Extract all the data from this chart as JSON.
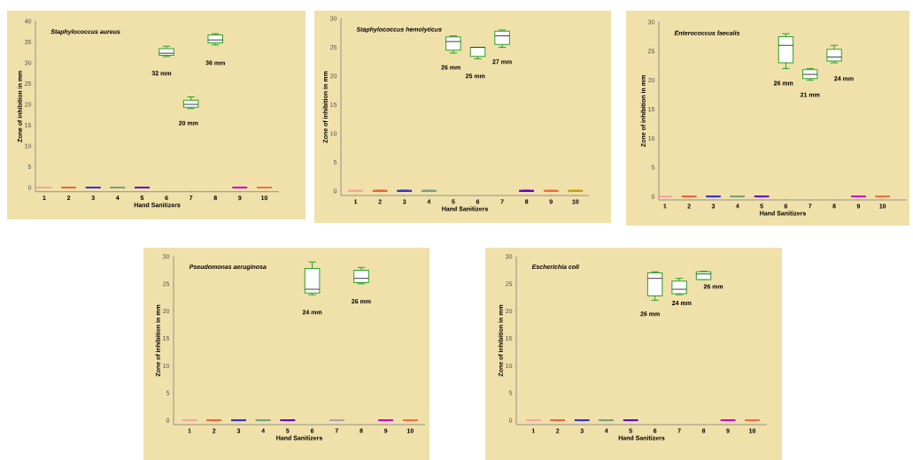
{
  "chart_data": [
    {
      "type": "box",
      "title": "Staphylococcus aureus",
      "xlabel": "Hand Sanitizers",
      "ylabel": "Zone of inhibition in mm",
      "categories": [
        "1",
        "2",
        "3",
        "4",
        "5",
        "6",
        "7",
        "8",
        "9",
        "10"
      ],
      "boxes": [
        {
          "low": 0,
          "q1": 0,
          "median": 0,
          "q3": 0,
          "high": 0
        },
        {
          "low": 0,
          "q1": 0,
          "median": 0,
          "q3": 0,
          "high": 0
        },
        {
          "low": 0,
          "q1": 0,
          "median": 0,
          "q3": 0,
          "high": 0
        },
        {
          "low": 0,
          "q1": 0,
          "median": 0,
          "q3": 0,
          "high": 0
        },
        {
          "low": 0,
          "q1": 0,
          "median": 0,
          "q3": 0,
          "high": 0
        },
        {
          "low": 31.5,
          "q1": 31.8,
          "median": 32.3,
          "q3": 33.4,
          "high": 34
        },
        {
          "low": 19,
          "q1": 19.3,
          "median": 20,
          "q3": 21,
          "high": 21.8
        },
        {
          "low": 34.3,
          "q1": 34.8,
          "median": 35.5,
          "q3": 36.7,
          "high": 37
        },
        {
          "low": 0,
          "q1": 0,
          "median": 0,
          "q3": 0,
          "high": 0
        },
        {
          "low": 0,
          "q1": 0,
          "median": 0,
          "q3": 0,
          "high": 0
        }
      ],
      "colors": [
        "#f4a6a0",
        "#e8643c",
        "#3333cc",
        "#7aa07a",
        "#6600cc",
        "#2ca02c",
        "#2ca02c",
        "#2ca02c",
        "#cc00cc",
        "#f07040"
      ],
      "ylim": [
        -1,
        40
      ],
      "yticks": [
        0,
        5,
        10,
        15,
        20,
        25,
        30,
        35,
        40
      ],
      "annotations": [
        "32 mm",
        "20 mm",
        "36 mm"
      ]
    },
    {
      "type": "box",
      "title": "Staphylococcus hemolyticus",
      "xlabel": "Hand Sanitizers",
      "ylabel": "Zone of inhibition in mm",
      "categories": [
        "1",
        "2",
        "3",
        "4",
        "5",
        "6",
        "7",
        "8",
        "9",
        "10"
      ],
      "boxes": [
        {
          "low": 0,
          "q1": 0,
          "median": 0,
          "q3": 0,
          "high": 0
        },
        {
          "low": 0,
          "q1": 0,
          "median": 0,
          "q3": 0,
          "high": 0
        },
        {
          "low": 0,
          "q1": 0,
          "median": 0,
          "q3": 0,
          "high": 0
        },
        {
          "low": 0,
          "q1": 0,
          "median": 0,
          "q3": 0,
          "high": 0
        },
        {
          "low": 24,
          "q1": 24.5,
          "median": 26,
          "q3": 26.8,
          "high": 27
        },
        {
          "low": 23,
          "q1": 23.4,
          "median": 25,
          "q3": 25,
          "high": 25
        },
        {
          "low": 25,
          "q1": 25.5,
          "median": 27,
          "q3": 27.8,
          "high": 28
        },
        {
          "low": 0,
          "q1": 0,
          "median": 0,
          "q3": 0,
          "high": 0
        },
        {
          "low": 0,
          "q1": 0,
          "median": 0,
          "q3": 0,
          "high": 0
        },
        {
          "low": 0,
          "q1": 0,
          "median": 0,
          "q3": 0,
          "high": 0
        }
      ],
      "colors": [
        "#f4a6a0",
        "#e8643c",
        "#3333cc",
        "#7aa07a",
        "#2ca02c",
        "#2ca02c",
        "#2ca02c",
        "#6600cc",
        "#f07040",
        "#c8a000"
      ],
      "ylim": [
        -0.8,
        30
      ],
      "yticks": [
        0,
        5,
        10,
        15,
        20,
        25,
        30
      ],
      "annotations": [
        "26 mm",
        "25 mm",
        "27 mm"
      ]
    },
    {
      "type": "box",
      "title": "Enterococcus faecalis",
      "xlabel": "Hand Sanitizers",
      "ylabel": "Zone of inhibition in mm",
      "categories": [
        "1",
        "2",
        "3",
        "4",
        "5",
        "6",
        "7",
        "8",
        "9",
        "10"
      ],
      "boxes": [
        {
          "low": 0,
          "q1": 0,
          "median": 0,
          "q3": 0,
          "high": 0
        },
        {
          "low": 0,
          "q1": 0,
          "median": 0,
          "q3": 0,
          "high": 0
        },
        {
          "low": 0,
          "q1": 0,
          "median": 0,
          "q3": 0,
          "high": 0
        },
        {
          "low": 0,
          "q1": 0,
          "median": 0,
          "q3": 0,
          "high": 0
        },
        {
          "low": 0,
          "q1": 0,
          "median": 0,
          "q3": 0,
          "high": 0
        },
        {
          "low": 22,
          "q1": 23,
          "median": 26,
          "q3": 27.5,
          "high": 28
        },
        {
          "low": 20,
          "q1": 20.3,
          "median": 21,
          "q3": 21.8,
          "high": 22
        },
        {
          "low": 23,
          "q1": 23.3,
          "median": 24,
          "q3": 25.3,
          "high": 26
        },
        {
          "low": 0,
          "q1": 0,
          "median": 0,
          "q3": 0,
          "high": 0
        },
        {
          "low": 0,
          "q1": 0,
          "median": 0,
          "q3": 0,
          "high": 0
        }
      ],
      "colors": [
        "#f4a6a0",
        "#e8643c",
        "#3333cc",
        "#7aa07a",
        "#6600cc",
        "#2ca02c",
        "#2ca02c",
        "#2ca02c",
        "#cc00cc",
        "#f07040"
      ],
      "ylim": [
        -0.6,
        30
      ],
      "yticks": [
        0,
        5,
        10,
        15,
        20,
        25,
        30
      ],
      "annotations": [
        "26 mm",
        "21 mm",
        "24 mm"
      ]
    },
    {
      "type": "box",
      "title": "Pseudomonas aeruginosa",
      "xlabel": "Hand Sanitizers",
      "ylabel": "Zone of inhibition in mm",
      "categories": [
        "1",
        "2",
        "3",
        "4",
        "5",
        "6",
        "7",
        "8",
        "9",
        "10"
      ],
      "boxes": [
        {
          "low": 0,
          "q1": 0,
          "median": 0,
          "q3": 0,
          "high": 0
        },
        {
          "low": 0,
          "q1": 0,
          "median": 0,
          "q3": 0,
          "high": 0
        },
        {
          "low": 0,
          "q1": 0,
          "median": 0,
          "q3": 0,
          "high": 0
        },
        {
          "low": 0,
          "q1": 0,
          "median": 0,
          "q3": 0,
          "high": 0
        },
        {
          "low": 0,
          "q1": 0,
          "median": 0,
          "q3": 0,
          "high": 0
        },
        {
          "low": 23,
          "q1": 23.3,
          "median": 24,
          "q3": 27.8,
          "high": 29
        },
        {
          "low": 0,
          "q1": 0,
          "median": 0,
          "q3": 0,
          "high": 0
        },
        {
          "low": 25,
          "q1": 25.2,
          "median": 26,
          "q3": 27.5,
          "high": 28
        },
        {
          "low": 0,
          "q1": 0,
          "median": 0,
          "q3": 0,
          "high": 0
        },
        {
          "low": 0,
          "q1": 0,
          "median": 0,
          "q3": 0,
          "high": 0
        }
      ],
      "colors": [
        "#f4a6a0",
        "#e8643c",
        "#3333cc",
        "#7aa07a",
        "#6600cc",
        "#2ca02c",
        "#b0a0b0",
        "#2ca02c",
        "#cc00cc",
        "#f07040"
      ],
      "ylim": [
        -0.8,
        30
      ],
      "yticks": [
        0,
        5,
        10,
        15,
        20,
        25,
        30
      ],
      "annotations": [
        "24 mm",
        "26 mm"
      ]
    },
    {
      "type": "box",
      "title": "Escherichia coli",
      "xlabel": "Hand Sanitizers",
      "ylabel": "Zone of inhibition in mm",
      "categories": [
        "1",
        "2",
        "3",
        "4",
        "5",
        "6",
        "7",
        "8",
        "9",
        "10"
      ],
      "boxes": [
        {
          "low": 0,
          "q1": 0,
          "median": 0,
          "q3": 0,
          "high": 0
        },
        {
          "low": 0,
          "q1": 0,
          "median": 0,
          "q3": 0,
          "high": 0
        },
        {
          "low": 0,
          "q1": 0,
          "median": 0,
          "q3": 0,
          "high": 0
        },
        {
          "low": 0,
          "q1": 0,
          "median": 0,
          "q3": 0,
          "high": 0
        },
        {
          "low": 0,
          "q1": 0,
          "median": 0,
          "q3": 0,
          "high": 0
        },
        {
          "low": 22,
          "q1": 22.8,
          "median": 26,
          "q3": 27,
          "high": 27.2
        },
        {
          "low": 23,
          "q1": 23.2,
          "median": 24,
          "q3": 25.5,
          "high": 26
        },
        {
          "low": 25.8,
          "q1": 25.8,
          "median": 26.8,
          "q3": 27.2,
          "high": 27.3
        },
        {
          "low": 0,
          "q1": 0,
          "median": 0,
          "q3": 0,
          "high": 0
        },
        {
          "low": 0,
          "q1": 0,
          "median": 0,
          "q3": 0,
          "high": 0
        }
      ],
      "colors": [
        "#f4a6a0",
        "#e8643c",
        "#3333cc",
        "#7aa07a",
        "#6600cc",
        "#2ca02c",
        "#2ca02c",
        "#2ca02c",
        "#cc00cc",
        "#f07040"
      ],
      "ylim": [
        -0.8,
        30
      ],
      "yticks": [
        0,
        5,
        10,
        15,
        20,
        25,
        30
      ],
      "annotations": [
        "26 mm",
        "24 mm",
        "26 mm"
      ]
    }
  ]
}
